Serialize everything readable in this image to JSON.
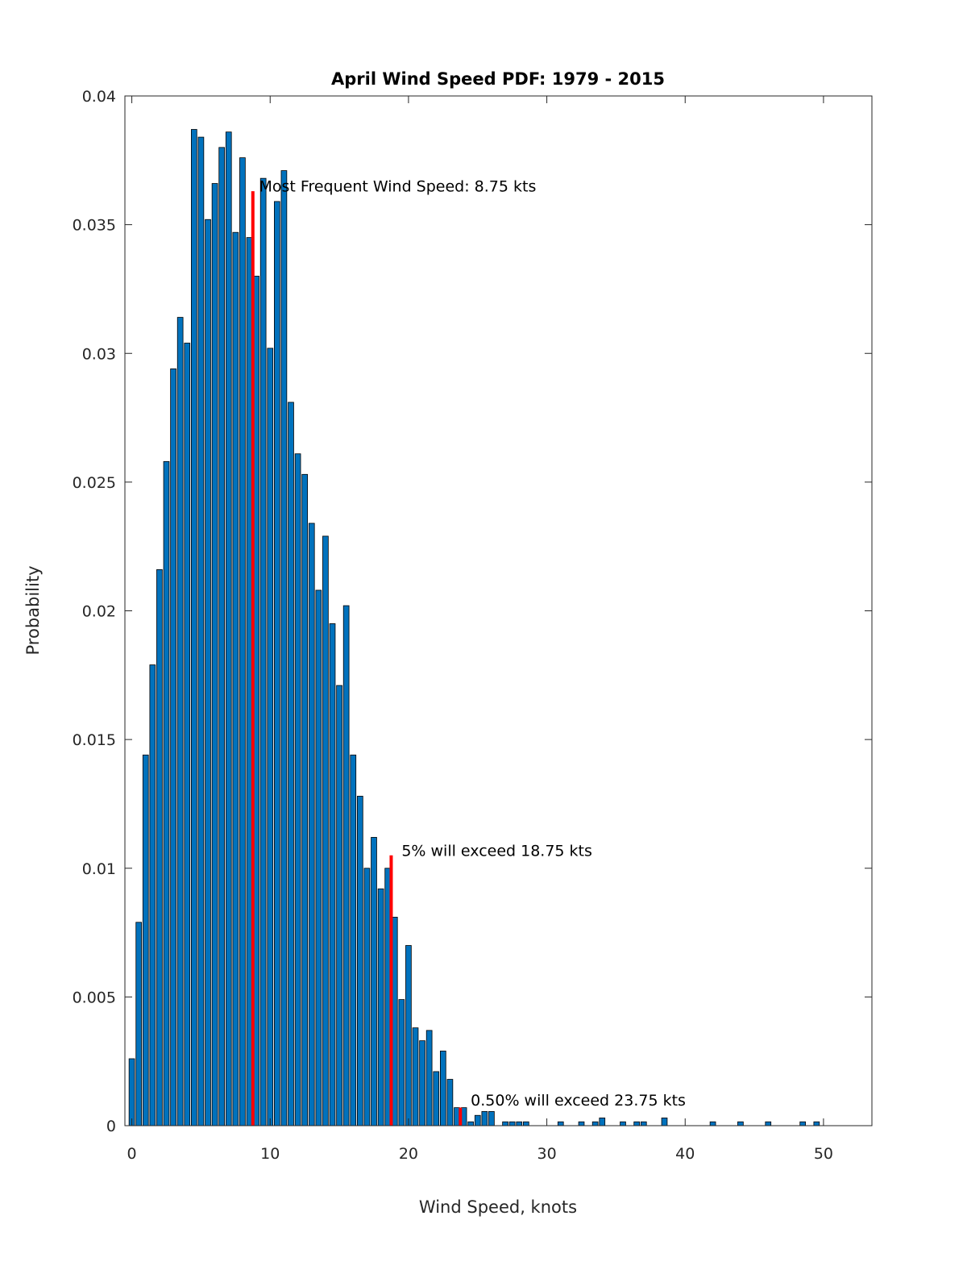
{
  "chart_data": {
    "type": "bar",
    "title": "April Wind Speed PDF: 1979 - 2015",
    "xlabel": "Wind Speed, knots",
    "ylabel": "Probability",
    "xlim": [
      -0.5,
      53.5
    ],
    "ylim": [
      0,
      0.04
    ],
    "bin_width": 0.5,
    "x_ticks": [
      0,
      10,
      20,
      30,
      40,
      50
    ],
    "x_tick_labels": [
      "0",
      "10",
      "20",
      "30",
      "40",
      "50"
    ],
    "y_ticks": [
      0,
      0.005,
      0.01,
      0.015,
      0.02,
      0.025,
      0.03,
      0.035,
      0.04
    ],
    "y_tick_labels": [
      "0",
      "0.005",
      "0.01",
      "0.015",
      "0.02",
      "0.025",
      "0.03",
      "0.035",
      "0.04"
    ],
    "bar_color": "#0072bd",
    "marker_color": "#ff0000",
    "x": [
      0,
      0.5,
      1,
      1.5,
      2,
      2.5,
      3,
      3.5,
      4,
      4.5,
      5,
      5.5,
      6,
      6.5,
      7,
      7.5,
      8,
      8.5,
      9,
      9.5,
      10,
      10.5,
      11,
      11.5,
      12,
      12.5,
      13,
      13.5,
      14,
      14.5,
      15,
      15.5,
      16,
      16.5,
      17,
      17.5,
      18,
      18.5,
      19,
      19.5,
      20,
      20.5,
      21,
      21.5,
      22,
      22.5,
      23,
      23.5,
      24,
      24.5,
      25,
      25.5,
      26,
      27,
      27.5,
      28,
      28.5,
      31,
      32.5,
      33.5,
      34,
      35.5,
      36.5,
      37,
      38.5,
      42,
      44,
      46,
      48.5,
      49.5
    ],
    "values": [
      0.0026,
      0.0079,
      0.0144,
      0.0179,
      0.0216,
      0.0258,
      0.0294,
      0.0314,
      0.0304,
      0.0387,
      0.0384,
      0.0352,
      0.0366,
      0.038,
      0.0386,
      0.0347,
      0.0376,
      0.0345,
      0.033,
      0.0368,
      0.0302,
      0.0359,
      0.0371,
      0.0281,
      0.0261,
      0.0253,
      0.0234,
      0.0208,
      0.0229,
      0.0195,
      0.0171,
      0.0202,
      0.0144,
      0.0128,
      0.01,
      0.0112,
      0.0092,
      0.01,
      0.0081,
      0.0049,
      0.007,
      0.0038,
      0.0033,
      0.0037,
      0.0021,
      0.0029,
      0.0018,
      0.0007,
      0.0007,
      0.00015,
      0.0004,
      0.00055,
      0.00055,
      0.00015,
      0.00015,
      0.00015,
      0.00015,
      0.00015,
      0.00015,
      0.00015,
      0.0003,
      0.00015,
      0.00015,
      0.00015,
      0.0003,
      0.00015,
      0.00015,
      0.00015,
      0.00015,
      0.00015
    ],
    "markers": [
      {
        "x": 8.75,
        "y_top": 0.0363,
        "label": "Most Frequent Wind Speed: 8.75 kts",
        "label_x": 9.2,
        "label_y": 0.0365
      },
      {
        "x": 18.75,
        "y_top": 0.0105,
        "label": "5% will exceed 18.75 kts",
        "label_x": 19.5,
        "label_y": 0.0107
      },
      {
        "x": 23.75,
        "y_top": 0.0007,
        "label": "0.50% will exceed 23.75 kts",
        "label_x": 24.5,
        "label_y": 0.001
      }
    ]
  }
}
